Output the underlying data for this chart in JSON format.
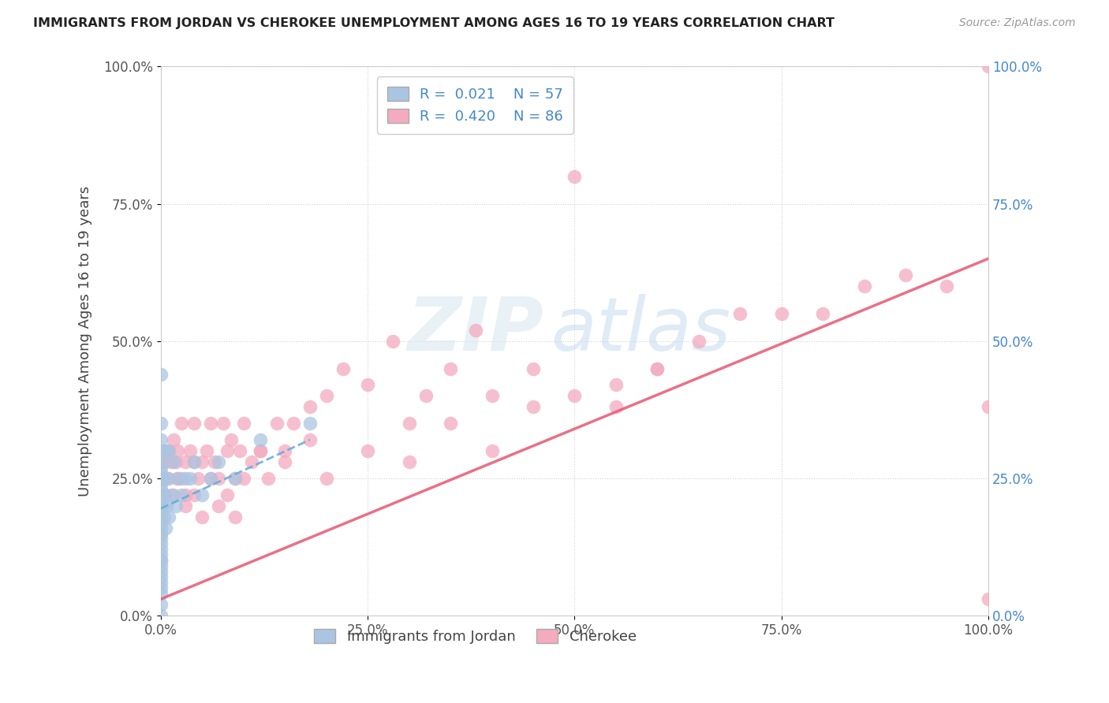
{
  "title": "IMMIGRANTS FROM JORDAN VS CHEROKEE UNEMPLOYMENT AMONG AGES 16 TO 19 YEARS CORRELATION CHART",
  "source": "Source: ZipAtlas.com",
  "ylabel": "Unemployment Among Ages 16 to 19 years",
  "xlim": [
    0.0,
    1.0
  ],
  "ylim": [
    0.0,
    1.0
  ],
  "xticks": [
    0.0,
    0.25,
    0.5,
    0.75,
    1.0
  ],
  "xtick_labels": [
    "0.0%",
    "25.0%",
    "50.0%",
    "75.0%",
    "100.0%"
  ],
  "yticks": [
    0.0,
    0.25,
    0.5,
    0.75,
    1.0
  ],
  "ytick_labels": [
    "0.0%",
    "25.0%",
    "50.0%",
    "75.0%",
    "100.0%"
  ],
  "jordan_color": "#aac5e2",
  "cherokee_color": "#f4aabf",
  "jordan_R": 0.021,
  "jordan_N": 57,
  "cherokee_R": 0.42,
  "cherokee_N": 86,
  "jordan_line_color": "#6aaed6",
  "cherokee_line_color": "#e8607a",
  "right_axis_color": "#4488cc",
  "background_color": "#ffffff",
  "jordan_scatter_x": [
    0.0,
    0.0,
    0.0,
    0.0,
    0.0,
    0.0,
    0.0,
    0.0,
    0.0,
    0.0,
    0.0,
    0.0,
    0.0,
    0.0,
    0.0,
    0.0,
    0.0,
    0.0,
    0.0,
    0.0,
    0.0,
    0.0,
    0.0,
    0.0,
    0.0,
    0.0,
    0.0,
    0.0,
    0.0,
    0.0,
    0.0,
    0.0,
    0.003,
    0.003,
    0.003,
    0.004,
    0.005,
    0.005,
    0.006,
    0.007,
    0.008,
    0.01,
    0.01,
    0.012,
    0.015,
    0.018,
    0.02,
    0.025,
    0.03,
    0.035,
    0.04,
    0.05,
    0.06,
    0.07,
    0.09,
    0.12,
    0.18
  ],
  "jordan_scatter_y": [
    0.0,
    0.02,
    0.04,
    0.05,
    0.06,
    0.07,
    0.08,
    0.09,
    0.1,
    0.11,
    0.12,
    0.13,
    0.14,
    0.15,
    0.16,
    0.17,
    0.18,
    0.19,
    0.2,
    0.21,
    0.22,
    0.23,
    0.24,
    0.25,
    0.25,
    0.26,
    0.27,
    0.28,
    0.3,
    0.32,
    0.35,
    0.44,
    0.2,
    0.22,
    0.25,
    0.18,
    0.22,
    0.3,
    0.16,
    0.2,
    0.25,
    0.18,
    0.3,
    0.22,
    0.28,
    0.2,
    0.25,
    0.22,
    0.25,
    0.25,
    0.28,
    0.22,
    0.25,
    0.28,
    0.25,
    0.32,
    0.35
  ],
  "cherokee_scatter_x": [
    0.0,
    0.0,
    0.0,
    0.0,
    0.0,
    0.003,
    0.005,
    0.005,
    0.008,
    0.01,
    0.01,
    0.012,
    0.015,
    0.015,
    0.018,
    0.02,
    0.02,
    0.025,
    0.025,
    0.03,
    0.03,
    0.035,
    0.04,
    0.04,
    0.045,
    0.05,
    0.055,
    0.06,
    0.065,
    0.07,
    0.075,
    0.08,
    0.085,
    0.09,
    0.095,
    0.1,
    0.11,
    0.12,
    0.13,
    0.14,
    0.15,
    0.16,
    0.18,
    0.2,
    0.22,
    0.25,
    0.28,
    0.3,
    0.32,
    0.35,
    0.38,
    0.4,
    0.45,
    0.5,
    0.55,
    0.6,
    0.65,
    0.7,
    0.75,
    0.8,
    0.85,
    0.9,
    0.95,
    1.0,
    1.0,
    1.0,
    0.03,
    0.04,
    0.05,
    0.06,
    0.07,
    0.08,
    0.09,
    0.1,
    0.12,
    0.15,
    0.18,
    0.2,
    0.25,
    0.3,
    0.35,
    0.4,
    0.45,
    0.5,
    0.55,
    0.6
  ],
  "cherokee_scatter_y": [
    0.1,
    0.15,
    0.2,
    0.25,
    0.28,
    0.25,
    0.22,
    0.28,
    0.3,
    0.25,
    0.3,
    0.28,
    0.32,
    0.22,
    0.28,
    0.25,
    0.3,
    0.35,
    0.25,
    0.28,
    0.22,
    0.3,
    0.28,
    0.35,
    0.25,
    0.28,
    0.3,
    0.35,
    0.28,
    0.25,
    0.35,
    0.3,
    0.32,
    0.25,
    0.3,
    0.35,
    0.28,
    0.3,
    0.25,
    0.35,
    0.3,
    0.35,
    0.38,
    0.4,
    0.45,
    0.42,
    0.5,
    0.35,
    0.4,
    0.45,
    0.52,
    0.4,
    0.45,
    0.8,
    0.38,
    0.45,
    0.5,
    0.55,
    0.55,
    0.55,
    0.6,
    0.62,
    0.6,
    0.03,
    0.38,
    1.0,
    0.2,
    0.22,
    0.18,
    0.25,
    0.2,
    0.22,
    0.18,
    0.25,
    0.3,
    0.28,
    0.32,
    0.25,
    0.3,
    0.28,
    0.35,
    0.3,
    0.38,
    0.4,
    0.42,
    0.45
  ],
  "jordan_line_x": [
    0.0,
    0.18
  ],
  "jordan_line_y": [
    0.195,
    0.32
  ],
  "cherokee_line_x": [
    0.0,
    1.0
  ],
  "cherokee_line_y": [
    0.03,
    0.65
  ]
}
